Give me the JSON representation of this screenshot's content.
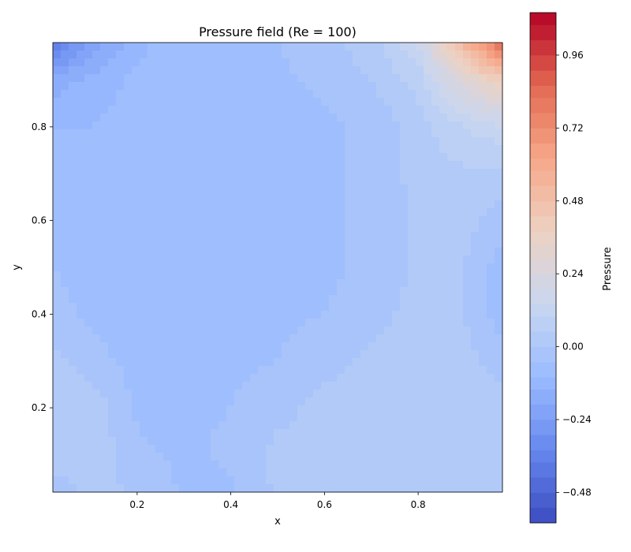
{
  "chart_data": {
    "type": "heatmap",
    "subtype": "filled-contour",
    "title": "Pressure field (Re = 100)",
    "xlabel": "x",
    "ylabel": "y",
    "xlim": [
      0.02,
      0.98
    ],
    "ylim": [
      0.02,
      0.98
    ],
    "x_ticks": [
      {
        "value": 0.2,
        "label": "0.2"
      },
      {
        "value": 0.4,
        "label": "0.4"
      },
      {
        "value": 0.6,
        "label": "0.6"
      },
      {
        "value": 0.8,
        "label": "0.8"
      }
    ],
    "y_ticks": [
      {
        "value": 0.2,
        "label": "0.2"
      },
      {
        "value": 0.4,
        "label": "0.4"
      },
      {
        "value": 0.6,
        "label": "0.6"
      },
      {
        "value": 0.8,
        "label": "0.8"
      }
    ],
    "colorbar": {
      "label": "Pressure",
      "range": [
        -0.58,
        1.1
      ],
      "levels": [
        -0.58,
        -0.53,
        -0.48,
        -0.43,
        -0.38,
        -0.34,
        -0.29,
        -0.24,
        -0.19,
        -0.14,
        -0.1,
        -0.05,
        0.0,
        0.05,
        0.1,
        0.14,
        0.19,
        0.24,
        0.29,
        0.34,
        0.38,
        0.43,
        0.48,
        0.53,
        0.58,
        0.62,
        0.67,
        0.72,
        0.77,
        0.82,
        0.86,
        0.91,
        0.96,
        1.01,
        1.06,
        1.1
      ],
      "ticks": [
        {
          "value": -0.48,
          "label": "−0.48"
        },
        {
          "value": -0.24,
          "label": "−0.24"
        },
        {
          "value": 0.0,
          "label": "0.00"
        },
        {
          "value": 0.24,
          "label": "0.24"
        },
        {
          "value": 0.48,
          "label": "0.48"
        },
        {
          "value": 0.72,
          "label": "0.72"
        },
        {
          "value": 0.96,
          "label": "0.96"
        }
      ],
      "colormap": "coolwarm"
    },
    "field": {
      "x": [
        0.02,
        0.1,
        0.2,
        0.3,
        0.4,
        0.5,
        0.6,
        0.7,
        0.8,
        0.9,
        0.98
      ],
      "y": [
        0.02,
        0.1,
        0.2,
        0.3,
        0.4,
        0.5,
        0.6,
        0.7,
        0.8,
        0.9,
        0.98
      ],
      "values": [
        [
          -0.03,
          0.01,
          0.0,
          -0.06,
          -0.06,
          0.01,
          0.01,
          0.02,
          0.02,
          0.02,
          0.03
        ],
        [
          0.03,
          0.04,
          -0.04,
          -0.06,
          -0.04,
          0.02,
          0.02,
          0.02,
          0.03,
          0.03,
          0.03
        ],
        [
          0.04,
          0.04,
          -0.06,
          -0.06,
          -0.05,
          -0.02,
          0.02,
          0.02,
          0.03,
          0.03,
          0.03
        ],
        [
          0.02,
          -0.03,
          -0.07,
          -0.07,
          -0.06,
          -0.05,
          -0.02,
          0.01,
          0.03,
          0.02,
          -0.03
        ],
        [
          -0.03,
          -0.06,
          -0.08,
          -0.08,
          -0.07,
          -0.06,
          -0.05,
          -0.02,
          0.02,
          0.0,
          -0.08
        ],
        [
          -0.05,
          -0.07,
          -0.08,
          -0.08,
          -0.08,
          -0.07,
          -0.06,
          -0.04,
          0.01,
          0.0,
          -0.08
        ],
        [
          -0.05,
          -0.07,
          -0.08,
          -0.08,
          -0.08,
          -0.07,
          -0.06,
          -0.04,
          0.01,
          0.02,
          -0.03
        ],
        [
          -0.06,
          -0.08,
          -0.08,
          -0.08,
          -0.08,
          -0.07,
          -0.06,
          -0.04,
          0.02,
          0.04,
          0.03
        ],
        [
          -0.1,
          -0.1,
          -0.08,
          -0.08,
          -0.08,
          -0.07,
          -0.06,
          -0.04,
          0.03,
          0.1,
          0.14
        ],
        [
          -0.16,
          -0.13,
          -0.09,
          -0.08,
          -0.07,
          -0.06,
          -0.04,
          0.0,
          0.07,
          0.28,
          0.4
        ],
        [
          -0.4,
          -0.22,
          -0.11,
          -0.08,
          -0.07,
          -0.05,
          -0.02,
          0.03,
          0.14,
          0.55,
          0.85
        ]
      ]
    }
  },
  "colors": {
    "coolwarm_stops": [
      "#3b4cc0",
      "#6788ee",
      "#9abbff",
      "#c9d7f0",
      "#edd1c2",
      "#f7a889",
      "#e26952",
      "#b40426"
    ]
  }
}
